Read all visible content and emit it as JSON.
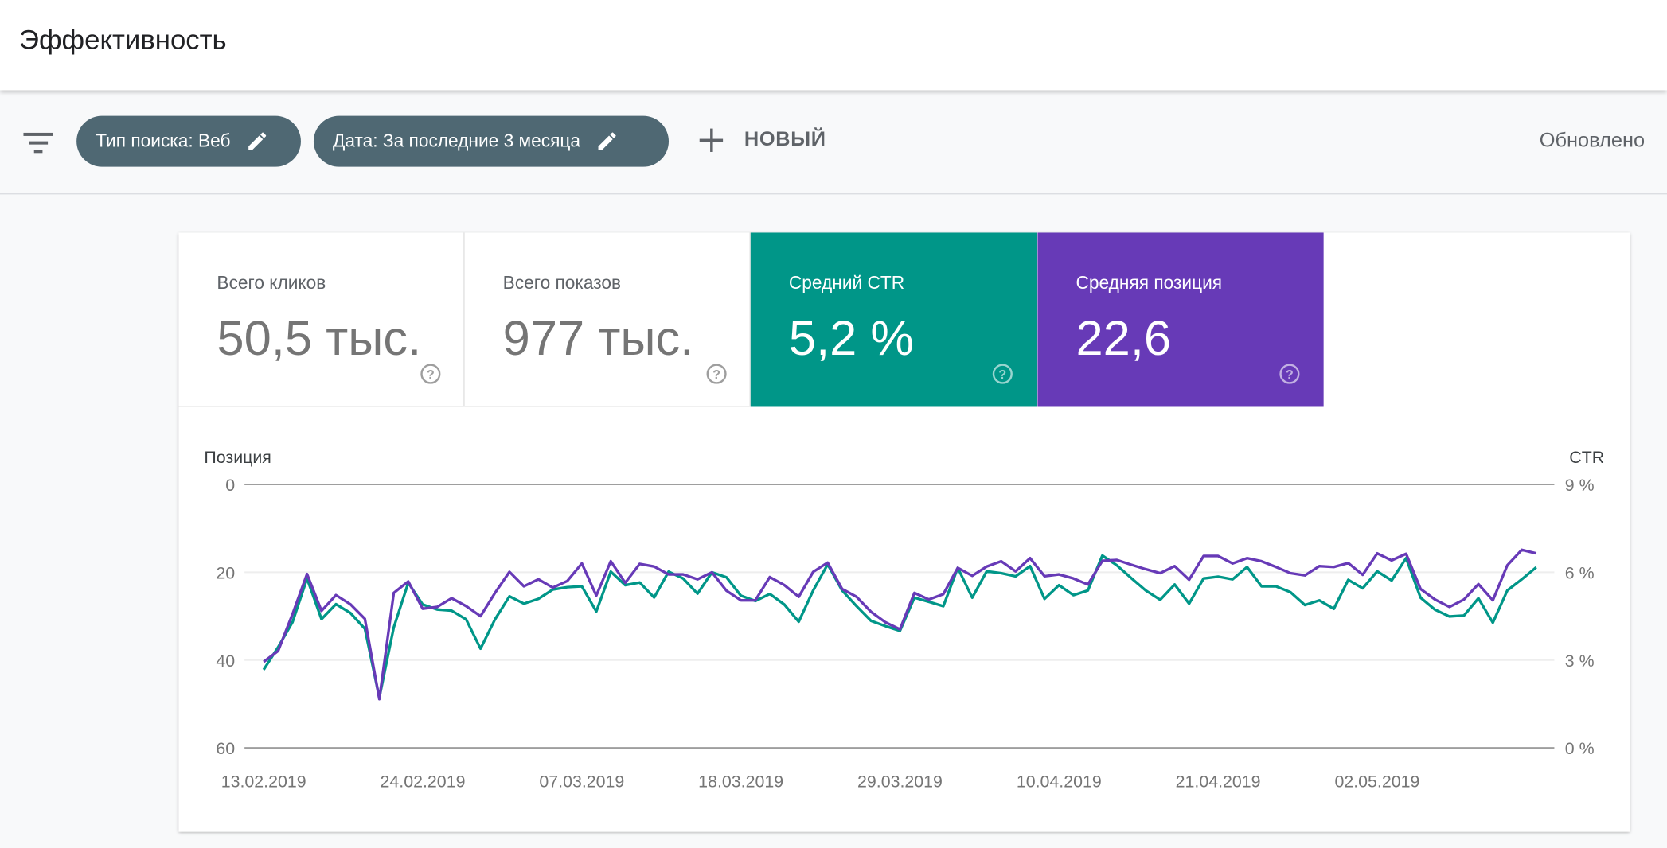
{
  "header": {
    "title": "Эффективность"
  },
  "filters": {
    "chips": [
      {
        "label": "Тип поиска: Веб"
      },
      {
        "label": "Дата: За последние 3 месяца"
      }
    ],
    "new_label": "НОВЫЙ",
    "updated_label": "Обновлено"
  },
  "metrics": [
    {
      "label": "Всего кликов",
      "value": "50,5 тыс.",
      "selected": false,
      "color": "#ffffff"
    },
    {
      "label": "Всего показов",
      "value": "977 тыс.",
      "selected": false,
      "color": "#ffffff"
    },
    {
      "label": "Средний CTR",
      "value": "5,2 %",
      "selected": true,
      "color": "#009688"
    },
    {
      "label": "Средняя позиция",
      "value": "22,6",
      "selected": true,
      "color": "#673ab7"
    }
  ],
  "chart_data": {
    "type": "line",
    "left_axis_label": "Позиция",
    "right_axis_label": "CTR",
    "left_ticks": [
      "0",
      "20",
      "40",
      "60"
    ],
    "right_ticks": [
      "9 %",
      "6 %",
      "3 %",
      "0 %"
    ],
    "left_range": [
      0,
      60
    ],
    "left_inverted": true,
    "right_range": [
      0,
      9
    ],
    "x_start": "13.02.2019",
    "x_end": "12.05.2019",
    "x_tick_labels": [
      "13.02.2019",
      "24.02.2019",
      "07.03.2019",
      "18.03.2019",
      "29.03.2019",
      "10.04.2019",
      "21.04.2019",
      "02.05.2019"
    ],
    "x_tick_every_days": 11,
    "series": [
      {
        "name": "Средняя позиция",
        "axis": "left",
        "color": "#673ab7",
        "values": [
          40.4,
          37.9,
          29.5,
          20.4,
          28.8,
          25.2,
          27.3,
          30.6,
          48.9,
          24.7,
          22.1,
          28.3,
          27.9,
          25.9,
          27.7,
          30.0,
          24.7,
          19.9,
          23.2,
          21.6,
          23.5,
          22.0,
          18.0,
          25.3,
          17.5,
          22.4,
          18.1,
          18.7,
          20.5,
          20.5,
          21.6,
          20.0,
          24.2,
          26.4,
          26.4,
          21.1,
          22.9,
          25.6,
          19.9,
          17.8,
          23.8,
          25.6,
          29.0,
          31.4,
          33.0,
          24.7,
          26.2,
          25.0,
          19.0,
          20.8,
          18.7,
          17.5,
          19.8,
          16.8,
          20.9,
          20.5,
          21.4,
          22.8,
          17.4,
          17.2,
          18.3,
          19.3,
          20.2,
          18.6,
          21.7,
          16.3,
          16.3,
          18.0,
          16.8,
          17.5,
          18.8,
          20.2,
          20.7,
          18.6,
          18.8,
          17.9,
          20.6,
          15.7,
          17.3,
          15.8,
          23.8,
          26.2,
          27.9,
          26.2,
          22.7,
          26.4,
          18.4,
          14.9,
          15.7
        ]
      },
      {
        "name": "Средний CTR",
        "axis": "right",
        "color": "#009688",
        "values": [
          2.67,
          3.44,
          4.3,
          5.79,
          4.4,
          4.91,
          4.61,
          4.07,
          1.72,
          4.12,
          5.64,
          4.9,
          4.73,
          4.69,
          4.39,
          3.39,
          4.39,
          5.18,
          4.93,
          5.09,
          5.41,
          5.49,
          5.52,
          4.66,
          6.02,
          5.56,
          5.65,
          5.14,
          6.02,
          5.79,
          5.27,
          6.0,
          5.83,
          5.2,
          5.02,
          5.26,
          4.9,
          4.31,
          5.38,
          6.27,
          5.38,
          4.84,
          4.34,
          4.16,
          4.0,
          5.13,
          4.99,
          4.84,
          6.15,
          5.13,
          6.03,
          5.97,
          5.86,
          6.21,
          5.09,
          5.56,
          5.22,
          5.38,
          6.57,
          6.24,
          5.8,
          5.38,
          5.06,
          5.58,
          4.93,
          5.79,
          5.85,
          5.76,
          6.18,
          5.52,
          5.52,
          5.32,
          4.88,
          5.04,
          4.75,
          5.74,
          5.45,
          6.03,
          5.72,
          6.48,
          5.13,
          4.72,
          4.49,
          4.52,
          5.11,
          4.28,
          5.38,
          5.76,
          6.17
        ]
      }
    ]
  }
}
